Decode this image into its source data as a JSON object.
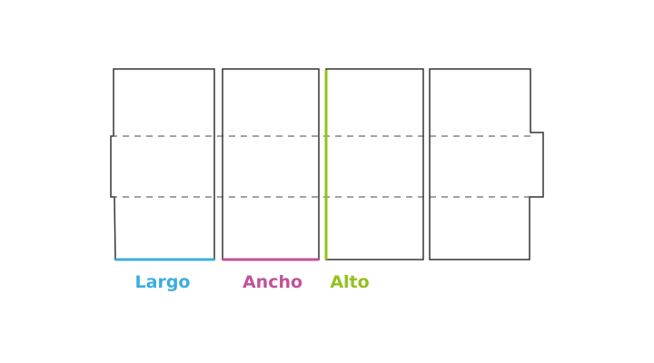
{
  "diagram": {
    "labels": {
      "length": "Largo",
      "width": "Ancho",
      "height": "Alto"
    },
    "colors": {
      "outline": "#333333",
      "length": "#3aaee0",
      "width": "#c0529a",
      "height": "#95c11f"
    }
  }
}
